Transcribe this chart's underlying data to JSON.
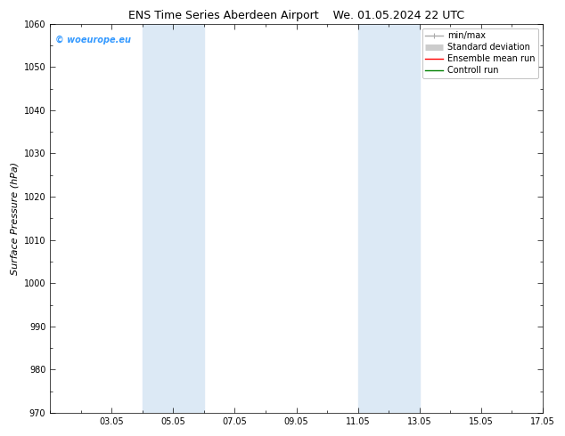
{
  "title_left": "ENS Time Series Aberdeen Airport",
  "title_right": "We. 01.05.2024 22 UTC",
  "ylabel": "Surface Pressure (hPa)",
  "ylim": [
    970,
    1060
  ],
  "yticks": [
    970,
    980,
    990,
    1000,
    1010,
    1020,
    1030,
    1040,
    1050,
    1060
  ],
  "xlim_start": 1,
  "xlim_end": 17,
  "xtick_labels": [
    "03.05",
    "05.05",
    "07.05",
    "09.05",
    "11.05",
    "13.05",
    "15.05",
    "17.05"
  ],
  "xtick_positions": [
    3,
    5,
    7,
    9,
    11,
    13,
    15,
    17
  ],
  "shaded_bands": [
    {
      "x_start": 4,
      "x_end": 6
    },
    {
      "x_start": 11,
      "x_end": 13
    }
  ],
  "shaded_color": "#dce9f5",
  "background_color": "#ffffff",
  "watermark_text": "© woeurope.eu",
  "watermark_color": "#3399ff",
  "legend_items": [
    {
      "label": "min/max",
      "color": "#aaaaaa",
      "linestyle": "-",
      "linewidth": 1.0
    },
    {
      "label": "Standard deviation",
      "color": "#cccccc",
      "linestyle": "-",
      "linewidth": 5
    },
    {
      "label": "Ensemble mean run",
      "color": "#ff0000",
      "linestyle": "-",
      "linewidth": 1.0
    },
    {
      "label": "Controll run",
      "color": "#008000",
      "linestyle": "-",
      "linewidth": 1.0
    }
  ],
  "tick_font_size": 7,
  "label_font_size": 8,
  "title_font_size": 9,
  "watermark_font_size": 7,
  "legend_font_size": 7
}
